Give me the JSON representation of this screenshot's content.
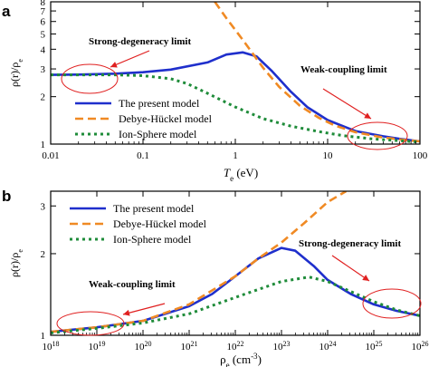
{
  "chart_data": [
    {
      "panel": "a",
      "type": "line",
      "xscale": "log",
      "yscale": "log",
      "xlim": [
        0.01,
        100
      ],
      "ylim": [
        1,
        8
      ],
      "xlabel": "T",
      "xlabel_sub": "e",
      "xlabel_unit": " (eV)",
      "ylabel": "ρ(r)/ρ",
      "ylabel_sub": "e",
      "xticks": [
        0.01,
        0.1,
        1,
        10,
        100
      ],
      "xtick_labels": [
        "0.01",
        "0.1",
        "1",
        "10",
        "100"
      ],
      "yticks": [
        1,
        2,
        3,
        4,
        5,
        6,
        7,
        8
      ],
      "ytick_labels": [
        "1",
        "2",
        "3",
        "4",
        "5",
        "6",
        "7",
        "8"
      ],
      "legend_position": "lower-left",
      "series": [
        {
          "name": "The present model",
          "color": "#1f2fcc",
          "dash": "solid",
          "x": [
            0.01,
            0.02,
            0.05,
            0.1,
            0.2,
            0.5,
            0.8,
            1.2,
            1.7,
            2.5,
            4,
            6,
            10,
            20,
            40,
            60,
            100
          ],
          "y": [
            2.75,
            2.76,
            2.8,
            2.86,
            2.97,
            3.3,
            3.7,
            3.82,
            3.6,
            2.9,
            2.15,
            1.72,
            1.42,
            1.21,
            1.12,
            1.08,
            1.04
          ]
        },
        {
          "name": "Debye-Hückel model",
          "color": "#f08a24",
          "dash": "dash",
          "x": [
            0.6,
            0.8,
            1.2,
            2,
            3,
            5,
            8,
            12,
            20,
            40,
            70,
            100
          ],
          "y": [
            8,
            6.3,
            4.6,
            3.05,
            2.3,
            1.75,
            1.47,
            1.31,
            1.19,
            1.1,
            1.06,
            1.04
          ]
        },
        {
          "name": "Ion-Sphere model",
          "color": "#1f8c3a",
          "dash": "dot",
          "x": [
            0.01,
            0.05,
            0.1,
            0.2,
            0.3,
            0.5,
            1,
            2,
            4,
            8,
            15,
            30,
            60,
            100
          ],
          "y": [
            2.75,
            2.75,
            2.72,
            2.6,
            2.42,
            2.1,
            1.72,
            1.45,
            1.3,
            1.2,
            1.13,
            1.08,
            1.05,
            1.03
          ]
        }
      ],
      "annotations": [
        {
          "text": "Strong-degeneracy limit"
        },
        {
          "text": "Weak-coupling limit"
        }
      ]
    },
    {
      "panel": "b",
      "type": "line",
      "xscale": "log",
      "yscale": "log",
      "xlim": [
        1e+18,
        1e+26
      ],
      "ylim": [
        1,
        3.4
      ],
      "xlabel": "ρ",
      "xlabel_sub": "e",
      "xlabel_unit": " (cm",
      "xlabel_sup": "-3",
      "xlabel_end": ")",
      "ylabel": "ρ(r)/ρ",
      "ylabel_sub": "e",
      "xticks": [
        18,
        19,
        20,
        21,
        22,
        23,
        24,
        25,
        26
      ],
      "xtick_base": "10",
      "yticks": [
        1,
        2,
        3
      ],
      "ytick_labels": [
        "1",
        "2",
        "3"
      ],
      "legend_position": "upper-left",
      "series": [
        {
          "name": "The present model",
          "color": "#1f2fcc",
          "dash": "solid",
          "x": [
            18,
            19,
            20,
            21,
            21.5,
            22,
            22.5,
            23,
            23.3,
            23.7,
            24,
            24.5,
            25,
            25.5,
            26
          ],
          "y": [
            1.03,
            1.07,
            1.13,
            1.28,
            1.42,
            1.65,
            1.92,
            2.1,
            2.05,
            1.8,
            1.6,
            1.42,
            1.3,
            1.23,
            1.18
          ]
        },
        {
          "name": "Debye-Hückel model",
          "color": "#f08a24",
          "dash": "dash",
          "x": [
            18,
            19,
            20,
            21,
            22,
            22.5,
            23,
            23.5,
            24,
            24.4
          ],
          "y": [
            1.03,
            1.07,
            1.13,
            1.3,
            1.65,
            1.92,
            2.2,
            2.6,
            3.1,
            3.4
          ]
        },
        {
          "name": "Ion-Sphere model",
          "color": "#1f8c3a",
          "dash": "dot",
          "x": [
            18,
            19,
            20,
            21,
            22,
            23,
            23.6,
            24,
            24.5,
            25,
            25.5,
            26
          ],
          "y": [
            1.02,
            1.06,
            1.11,
            1.2,
            1.38,
            1.58,
            1.64,
            1.58,
            1.45,
            1.33,
            1.24,
            1.18
          ]
        }
      ],
      "annotations": [
        {
          "text": "Weak-coupling limit"
        },
        {
          "text": "Strong-degeneracy limit"
        }
      ]
    }
  ]
}
